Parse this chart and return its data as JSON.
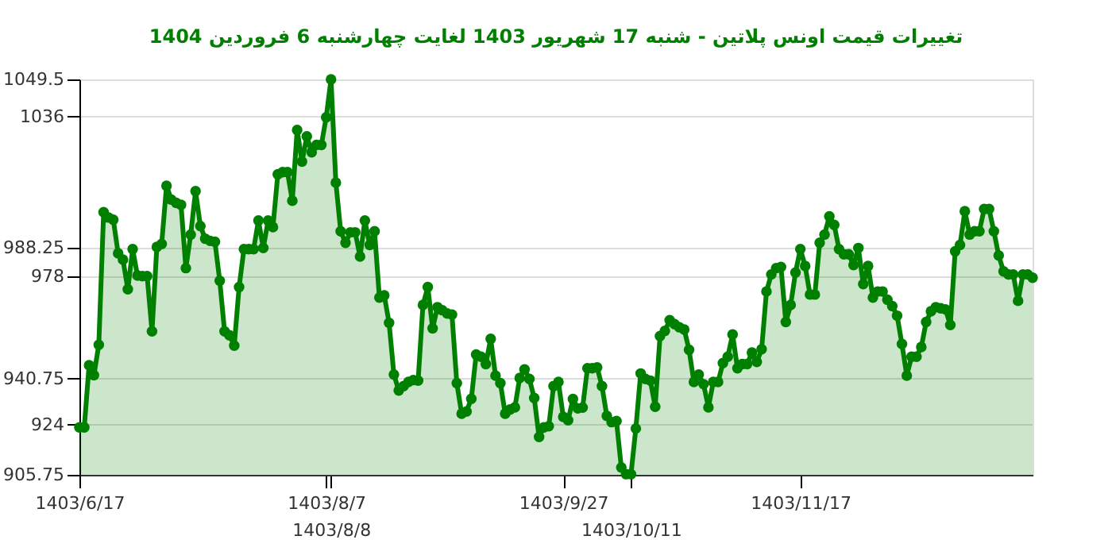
{
  "chart_data": {
    "type": "area",
    "title": "تغییرات قیمت اونس پلاتین - شنبه  17 شهریور 1403 لغایت  چهارشنبه  6 فروردین 1404",
    "marker": "circle",
    "grid": "y",
    "categories": [
      "1403/6/17",
      null,
      null,
      null,
      null,
      null,
      null,
      null,
      null,
      null,
      null,
      null,
      null,
      null,
      null,
      null,
      null,
      null,
      null,
      null,
      null,
      null,
      null,
      null,
      null,
      null,
      null,
      null,
      null,
      null,
      null,
      null,
      null,
      null,
      null,
      null,
      null,
      null,
      null,
      null,
      null,
      null,
      null,
      null,
      null,
      null,
      null,
      null,
      null,
      null,
      null,
      "1403/8/7",
      "1403/8/8",
      null,
      null,
      null,
      null,
      null,
      null,
      null,
      null,
      null,
      null,
      null,
      null,
      null,
      null,
      null,
      null,
      null,
      null,
      null,
      null,
      null,
      null,
      null,
      null,
      null,
      null,
      null,
      null,
      null,
      null,
      null,
      null,
      null,
      null,
      null,
      null,
      null,
      null,
      null,
      null,
      null,
      null,
      null,
      null,
      null,
      null,
      null,
      "1403/9/27",
      null,
      null,
      null,
      null,
      null,
      null,
      null,
      null,
      null,
      null,
      null,
      null,
      null,
      "1403/10/11",
      null,
      null,
      null,
      null,
      null,
      null,
      null,
      null,
      null,
      null,
      null,
      null,
      null,
      null,
      null,
      null,
      null,
      null,
      null,
      null,
      null,
      null,
      null,
      null,
      null,
      null,
      null,
      null,
      null,
      null,
      null,
      null,
      null,
      null,
      "1403/11/17",
      null,
      null,
      null,
      null,
      null,
      null,
      null,
      null,
      null,
      null,
      null,
      null,
      null,
      null,
      null,
      null,
      null,
      null,
      null,
      null,
      null,
      null,
      null,
      null,
      null,
      null,
      null,
      null,
      null,
      null,
      null,
      null,
      null,
      null,
      null,
      null,
      null,
      null,
      null,
      null,
      null,
      null,
      null,
      null,
      null,
      null,
      null,
      null
    ],
    "ylim": [
      905.75,
      1049.5
    ],
    "yticks": [
      905.75,
      924,
      940.75,
      978,
      988.25,
      1036,
      1049.5
    ],
    "series": [
      {
        "color": "#008000",
        "values": [
          923,
          923,
          945.6,
          942,
          953,
          1001.2,
          999.3,
          998.5,
          986.3,
          984,
          973.2,
          987.8,
          978.2,
          978,
          978,
          957.9,
          988.6,
          989.7,
          1010.8,
          1005.8,
          1004.6,
          1003.9,
          980.9,
          993.1,
          1008.9,
          996.2,
          991.6,
          990.8,
          990.5,
          976.3,
          957.9,
          956.5,
          952.7,
          974,
          987.8,
          987.8,
          987.8,
          998.2,
          988.2,
          998.2,
          995.8,
          1015,
          1015.8,
          1015.8,
          1005.4,
          1031.1,
          1019.6,
          1028.8,
          1023,
          1025.7,
          1025.7,
          1035.7,
          1049.5,
          1012,
          994.3,
          990.1,
          993.9,
          993.9,
          985.1,
          998.2,
          989.3,
          994.3,
          970.2,
          971,
          961,
          942.2,
          936.4,
          938,
          939.5,
          940.2,
          940,
          967.5,
          974,
          959,
          966.7,
          965.6,
          964.4,
          964,
          939.1,
          928,
          928.8,
          933.4,
          949.5,
          948.7,
          946,
          955.2,
          941.8,
          939.1,
          928,
          929.5,
          930.3,
          941,
          944.1,
          940.6,
          933.7,
          919.5,
          923,
          923.4,
          938,
          939.5,
          926.8,
          925.6,
          933.3,
          929.9,
          930.2,
          944.5,
          944.5,
          944.8,
          938,
          927.2,
          924.9,
          925.3,
          908.4,
          906,
          906,
          922.6,
          942.6,
          940.6,
          940,
          930.5,
          956.2,
          958.1,
          962,
          960.5,
          959.4,
          958.6,
          951.2,
          939.5,
          942.2,
          938.7,
          930.3,
          939.5,
          939.5,
          946.4,
          948.7,
          956.8,
          944.5,
          946,
          946,
          950.2,
          946.8,
          951.4,
          972.4,
          978.6,
          980.9,
          981.3,
          961.3,
          967.5,
          979.3,
          987.8,
          981.7,
          971.3,
          971.3,
          990.1,
          993.1,
          999.7,
          996.6,
          987.8,
          985.9,
          985.9,
          982,
          988.2,
          975.1,
          981.7,
          970.2,
          972.4,
          972.4,
          969.4,
          967.1,
          963.6,
          953.3,
          941.8,
          948.7,
          948.7,
          952.2,
          961.3,
          965.2,
          966.7,
          966.3,
          965.9,
          960.2,
          987,
          989.3,
          1001.6,
          993.1,
          994.3,
          994.3,
          1002.4,
          1002.4,
          994.3,
          985.5,
          979.7,
          978.6,
          978.6,
          969,
          978.6,
          978.6,
          977.4
        ]
      }
    ]
  }
}
